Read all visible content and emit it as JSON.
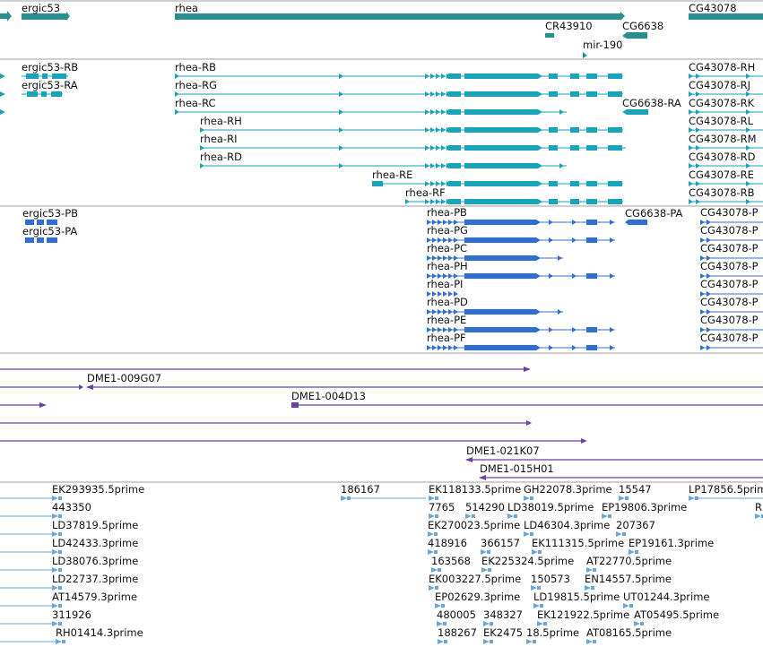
{
  "colors": {
    "gene": "#2a8f8c",
    "transcript": "#1aa2b8",
    "protein": "#2f6fd1",
    "clone": "#6b3fa8",
    "est": "#6aa6d8",
    "separator": "#9aa0a6"
  },
  "genes": [
    {
      "id": "ergic53",
      "label": "ergic53"
    },
    {
      "id": "rhea",
      "label": "rhea"
    },
    {
      "id": "CG43078",
      "label": "CG43078"
    },
    {
      "id": "CR43910",
      "label": "CR43910"
    },
    {
      "id": "CG6638",
      "label": "CG6638"
    },
    {
      "id": "mir-190",
      "label": "mir-190"
    }
  ],
  "transcripts": [
    "ergic53-RB",
    "ergic53-RA",
    "rhea-RB",
    "rhea-RG",
    "rhea-RC",
    "CG6638-RA",
    "rhea-RH",
    "rhea-RI",
    "rhea-RD",
    "rhea-RE",
    "rhea-RF",
    "CG43078-RH",
    "CG43078-RJ",
    "CG43078-RK",
    "CG43078-RL",
    "CG43078-RM",
    "CG43078-RD",
    "CG43078-RE",
    "CG43078-RB"
  ],
  "proteins": [
    "ergic53-PB",
    "ergic53-PA",
    "rhea-PB",
    "rhea-PG",
    "rhea-PC",
    "rhea-PH",
    "rhea-PI",
    "rhea-PD",
    "rhea-PE",
    "rhea-PF",
    "CG6638-PA",
    "CG43078-P",
    "CG43078-P",
    "CG43078-P",
    "CG43078-P",
    "CG43078-P",
    "CG43078-P",
    "CG43078-P",
    "CG43078-P"
  ],
  "clones": [
    "DME1-009G07",
    "DME1-004D13",
    "DME1-021K07",
    "DME1-015H01"
  ],
  "ests": [
    "EK293935.5prime",
    "443350",
    "LD37819.5prime",
    "LD42433.3prime",
    "LD38076.3prime",
    "LD22737.3prime",
    "AT14579.3prime",
    "311926",
    "RH01414.3prime",
    "186167",
    "EK118133.5prime",
    "GH22078.3prime",
    "15547",
    "LP17856.5prime",
    "R",
    "7765",
    "514290",
    "LD38019.5prime",
    "EP19806.3prime",
    "EK270023.5prime",
    "LD46304.3prime",
    "207367",
    "418916",
    "366157",
    "EK111315.5prime",
    "EP19161.3prime",
    "163568",
    "EK225324.5prime",
    "AT22770.5prime",
    "EK003227.5prime",
    "150573",
    "EN14557.5prime",
    "EP02629.3prime",
    "LD19815.5prime",
    "UT01244.3prime",
    "480005",
    "348327",
    "EK121922.5prime",
    "AT05495.5prime",
    "188267",
    "EK2475",
    "18.5prime",
    "AT08165.5prime"
  ]
}
